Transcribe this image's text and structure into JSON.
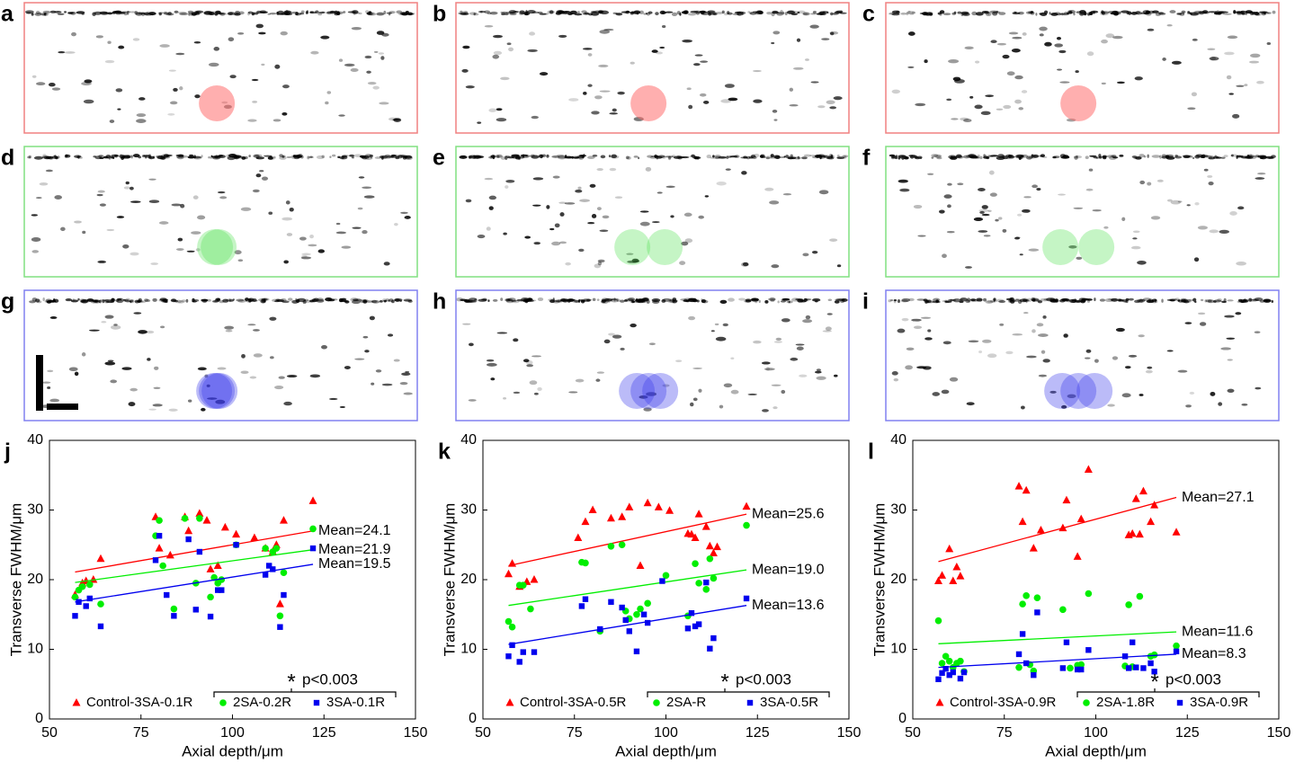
{
  "panels": [
    {
      "label": "a"
    },
    {
      "label": "b"
    },
    {
      "label": "c"
    },
    {
      "label": "d"
    },
    {
      "label": "e"
    },
    {
      "label": "f"
    },
    {
      "label": "g"
    },
    {
      "label": "h"
    },
    {
      "label": "i"
    }
  ],
  "chart_data": [
    {
      "type": "scatter",
      "label": "j",
      "xlabel": "Axial depth/μm",
      "ylabel": "Transverse FWHM/μm",
      "xlim": [
        50,
        150
      ],
      "xticks": [
        50,
        75,
        100,
        125,
        150
      ],
      "ylim": [
        0,
        40
      ],
      "yticks": [
        0,
        10,
        20,
        30,
        40
      ],
      "significance": "*",
      "p_value": "p<0.003",
      "series": [
        {
          "name": "Control-3SA-0.1R",
          "color": "#ff0000",
          "marker": "triangle",
          "annotation": "Mean=24.1",
          "x": [
            57,
            59,
            60,
            62,
            64,
            79,
            80,
            83,
            87,
            88,
            91,
            93,
            94,
            96,
            98,
            101,
            106,
            109,
            111,
            112,
            113,
            114,
            122
          ],
          "values": [
            17.8,
            19.5,
            19.8,
            20,
            23,
            29,
            24.5,
            23.5,
            29,
            27,
            29.5,
            28.5,
            21.5,
            22,
            27.5,
            26.5,
            26,
            24.5,
            24,
            25,
            16.5,
            28.5,
            31.3
          ],
          "trend": {
            "x": [
              57,
              122
            ],
            "y": [
              21.1,
              27
            ]
          }
        },
        {
          "name": "2SA-0.2R",
          "color": "#00ee00",
          "marker": "circle",
          "annotation": "Mean=21.9",
          "x": [
            57,
            58,
            59,
            61,
            64,
            79,
            80,
            81,
            84,
            87,
            90,
            91,
            94,
            95,
            96,
            97,
            101,
            109,
            111,
            112,
            113,
            114,
            122
          ],
          "values": [
            17.5,
            18.5,
            19,
            19.3,
            16.5,
            26.3,
            28.5,
            22,
            15.8,
            28.8,
            19.5,
            28.8,
            17.5,
            20.3,
            19.5,
            20,
            25,
            24.5,
            24,
            24.5,
            14.8,
            21,
            27.3
          ],
          "trend": {
            "x": [
              57,
              122
            ],
            "y": [
              19.6,
              24.3
            ]
          }
        },
        {
          "name": "3SA-0.1R",
          "color": "#0000ee",
          "marker": "square",
          "annotation": "Mean=19.5",
          "x": [
            57,
            58,
            60,
            61,
            64,
            79,
            80,
            82,
            84,
            88,
            90,
            91,
            94,
            96,
            97,
            101,
            109,
            110,
            111,
            113,
            114,
            122
          ],
          "values": [
            14.8,
            16.8,
            16.2,
            17.3,
            13.3,
            22.8,
            26.3,
            17.8,
            14.8,
            25.8,
            15.7,
            24,
            14.7,
            18.5,
            18.5,
            25,
            20.7,
            22,
            21.5,
            13.2,
            17.8,
            24.5
          ],
          "trend": {
            "x": [
              57,
              122
            ],
            "y": [
              16.8,
              22.2
            ]
          }
        }
      ]
    },
    {
      "type": "scatter",
      "label": "k",
      "xlabel": "Axial depth/μm",
      "ylabel": "Transverse FWHM/μm",
      "xlim": [
        50,
        150
      ],
      "xticks": [
        50,
        75,
        100,
        125,
        150
      ],
      "ylim": [
        0,
        40
      ],
      "yticks": [
        0,
        10,
        20,
        30,
        40
      ],
      "significance": "*",
      "p_value": "p<0.003",
      "series": [
        {
          "name": "Control-3SA-0.5R",
          "color": "#ff0000",
          "marker": "triangle",
          "annotation": "Mean=25.6",
          "x": [
            57,
            58,
            60,
            62,
            64,
            76,
            78,
            80,
            85,
            88,
            90,
            93,
            95,
            98,
            101,
            106,
            107,
            108,
            109,
            111,
            112,
            113,
            114,
            122
          ],
          "values": [
            20.8,
            22.3,
            19,
            19.7,
            20,
            26,
            28.3,
            30,
            28.8,
            29,
            30.4,
            22,
            31,
            30.4,
            29.9,
            26.6,
            26.5,
            26,
            29.4,
            27.6,
            24.8,
            23.8,
            24.7,
            30.5
          ],
          "trend": {
            "x": [
              57,
              122
            ],
            "y": [
              22,
              29.4
            ]
          }
        },
        {
          "name": "2SA-R",
          "color": "#00ee00",
          "marker": "circle",
          "annotation": "Mean=19.0",
          "x": [
            57,
            58,
            60,
            61,
            63,
            77,
            78,
            82,
            85,
            88,
            89,
            90,
            92,
            93,
            95,
            100,
            106,
            108,
            109,
            111,
            112,
            113,
            122
          ],
          "values": [
            14,
            13.2,
            19.2,
            19.2,
            15.8,
            22.5,
            22.4,
            12.6,
            24.8,
            25,
            15.5,
            14.4,
            15,
            15.8,
            16.6,
            20.6,
            14.8,
            22.3,
            19.5,
            18.6,
            23,
            20.2,
            27.8
          ],
          "trend": {
            "x": [
              57,
              122
            ],
            "y": [
              16.3,
              21.4
            ]
          }
        },
        {
          "name": "3SA-0.5R",
          "color": "#0000ee",
          "marker": "square",
          "annotation": "Mean=13.6",
          "x": [
            57,
            58,
            60,
            61,
            64,
            77,
            78,
            82,
            85,
            88,
            89,
            90,
            92,
            94,
            95,
            99,
            106,
            107,
            108,
            109,
            111,
            112,
            113,
            122
          ],
          "values": [
            9,
            10.6,
            8.2,
            9.6,
            9.6,
            16.2,
            17.2,
            12.9,
            16.8,
            16,
            14.2,
            12.6,
            9.7,
            15,
            13.8,
            19.8,
            13,
            15.2,
            13.3,
            13.6,
            19.6,
            10.1,
            11.6,
            17.3
          ],
          "trend": {
            "x": [
              57,
              122
            ],
            "y": [
              10.7,
              16.3
            ]
          }
        }
      ]
    },
    {
      "type": "scatter",
      "label": "l",
      "xlabel": "Axial depth/μm",
      "ylabel": "Transverse FWHM/μm",
      "xlim": [
        50,
        150
      ],
      "xticks": [
        50,
        75,
        100,
        125,
        150
      ],
      "ylim": [
        0,
        40
      ],
      "yticks": [
        0,
        10,
        20,
        30,
        40
      ],
      "significance": "*",
      "p_value": "p<0.003",
      "series": [
        {
          "name": "Control-3SA-0.9R",
          "color": "#ff0000",
          "marker": "triangle",
          "annotation": "Mean=27.1",
          "x": [
            57,
            58,
            60,
            61,
            62,
            63,
            79,
            80,
            81,
            83,
            85,
            91,
            92,
            95,
            96,
            98,
            109,
            110,
            111,
            112,
            113,
            115,
            116,
            122
          ],
          "values": [
            19.8,
            20.6,
            24.4,
            19.8,
            21.8,
            20.5,
            33.4,
            28.3,
            32.8,
            24.5,
            27.1,
            27.4,
            31.4,
            23.3,
            28.7,
            35.8,
            26.4,
            26.6,
            31.6,
            26.5,
            32.7,
            28.3,
            30.7,
            26.8
          ],
          "trend": {
            "x": [
              57,
              122
            ],
            "y": [
              22.6,
              31.8
            ]
          }
        },
        {
          "name": "2SA-1.8R",
          "color": "#00ee00",
          "marker": "circle",
          "annotation": "Mean=11.6",
          "x": [
            57,
            58,
            59,
            60,
            61,
            62,
            63,
            64,
            79,
            80,
            81,
            82,
            83,
            84,
            91,
            93,
            95,
            96,
            98,
            108,
            109,
            110,
            112,
            115,
            116,
            122
          ],
          "values": [
            14.1,
            8,
            9,
            8.3,
            7.4,
            8,
            8.3,
            6.8,
            7.4,
            16.5,
            17.7,
            7.8,
            6.9,
            17.4,
            15.7,
            7.3,
            7.7,
            7.8,
            18,
            7.6,
            16.4,
            7.5,
            17.6,
            9,
            9.2,
            10.5
          ],
          "trend": {
            "x": [
              57,
              122
            ],
            "y": [
              10.8,
              12.5
            ]
          }
        },
        {
          "name": "3SA-0.9R",
          "color": "#0000ee",
          "marker": "square",
          "annotation": "Mean=8.3",
          "x": [
            57,
            58,
            59,
            60,
            61,
            63,
            64,
            79,
            80,
            81,
            83,
            84,
            91,
            92,
            95,
            96,
            98,
            108,
            109,
            110,
            111,
            113,
            115,
            116,
            122
          ],
          "values": [
            5.7,
            6.6,
            7.2,
            6.3,
            6.7,
            5.8,
            6.7,
            9.3,
            12.2,
            8,
            6.3,
            15.3,
            7.3,
            11,
            7.1,
            7.1,
            9.9,
            9,
            7.3,
            11,
            7.4,
            7.3,
            8,
            6.8,
            9.7
          ],
          "trend": {
            "x": [
              57,
              122
            ],
            "y": [
              7.4,
              9.3
            ]
          }
        }
      ]
    }
  ]
}
